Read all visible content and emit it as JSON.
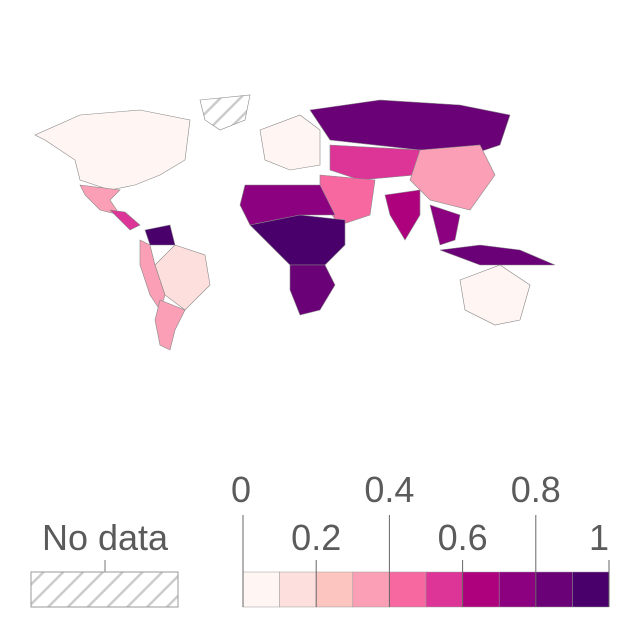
{
  "map": {
    "values": [
      0.02,
      null,
      0.3,
      0.5,
      0.9,
      0.15,
      0.35,
      0.3,
      0.05,
      0.85,
      0.55,
      0.3,
      0.45,
      0.6,
      0.75,
      0.85,
      0.7,
      0.9,
      0.8,
      0.05
    ]
  },
  "legend": {
    "no_data_label": "No data",
    "bins": [
      0,
      0.1,
      0.2,
      0.3,
      0.4,
      0.5,
      0.6,
      0.7,
      0.8,
      0.9,
      1
    ],
    "colors": [
      "#fff5f2",
      "#fde0dd",
      "#fcc5c0",
      "#fa9fb5",
      "#f768a1",
      "#dd3497",
      "#ae017e",
      "#8c0180",
      "#6a0177",
      "#49006a"
    ],
    "ticks": [
      0,
      0.2,
      0.4,
      0.6,
      0.8,
      1
    ]
  }
}
